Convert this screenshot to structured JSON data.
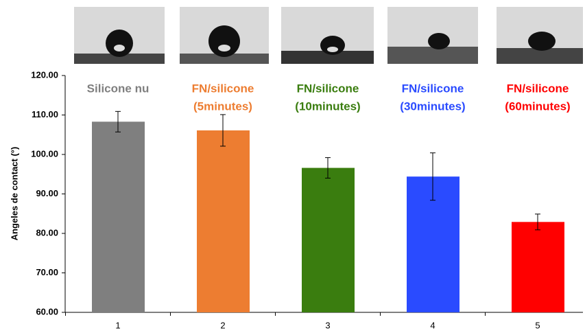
{
  "chart_data": {
    "type": "bar",
    "y_label": "Angeles de contact (°)",
    "categories": [
      "1",
      "2",
      "3",
      "4",
      "5"
    ],
    "values": [
      108.3,
      106.1,
      96.6,
      94.4,
      82.9
    ],
    "errors": [
      2.6,
      4.0,
      2.6,
      6.0,
      2.0
    ],
    "colors": [
      "#7f7f7f",
      "#ed7d31",
      "#3a7d0f",
      "#2a4bff",
      "#ff0000"
    ],
    "labels": [
      [
        "Silicone nu"
      ],
      [
        "FN/silicone",
        "(5minutes)"
      ],
      [
        "FN/silicone",
        "(10minutes)"
      ],
      [
        "FN/silicone",
        "(30minutes)"
      ],
      [
        "FN/silicone",
        "(60minutes)"
      ]
    ],
    "ylim": [
      60,
      120
    ],
    "yticks": [
      {
        "value": 60,
        "label": "60.00"
      },
      {
        "value": 70,
        "label": "70.00"
      },
      {
        "value": 80,
        "label": "80.00"
      },
      {
        "value": 90,
        "label": "90.00"
      },
      {
        "value": 100,
        "label": "100.00"
      },
      {
        "value": 110,
        "label": "110.00"
      },
      {
        "value": 120,
        "label": "120.00"
      }
    ]
  }
}
